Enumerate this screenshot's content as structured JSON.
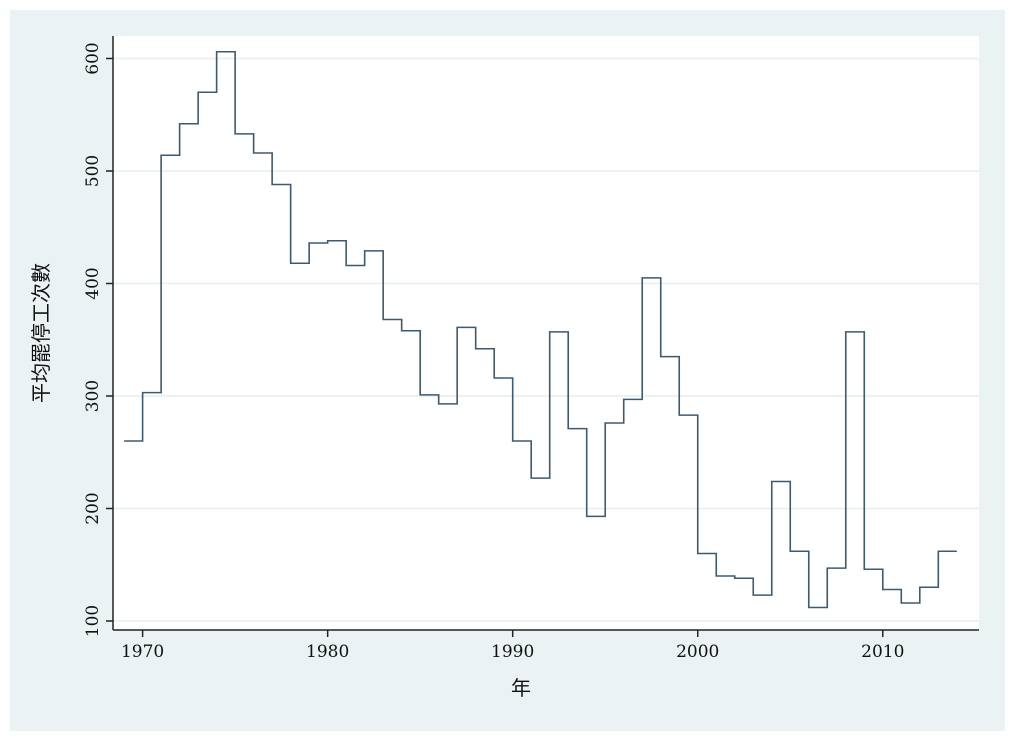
{
  "chart_data": {
    "type": "line",
    "step": true,
    "title": "",
    "xlabel": "年",
    "ylabel": "平均罷停工次數",
    "xlim": [
      1968.4,
      2015.2
    ],
    "ylim": [
      92,
      620
    ],
    "xticks": [
      1970,
      1980,
      1990,
      2000,
      2010
    ],
    "yticks": [
      100,
      200,
      300,
      400,
      500,
      600
    ],
    "grid": "horizontal",
    "legend": "none",
    "colors": {
      "line": "#3d5a73",
      "background": "#eaf2f3",
      "plot": "#ffffff",
      "grid": "#eaf2f3",
      "axis": "#222222"
    },
    "series": [
      {
        "x": [
          1969,
          1970,
          1971,
          1972,
          1973,
          1974,
          1975,
          1976,
          1977,
          1978,
          1979,
          1980,
          1981,
          1982,
          1983,
          1984,
          1985,
          1986,
          1987,
          1988,
          1989,
          1990,
          1991,
          1992,
          1993,
          1994,
          1995,
          1996,
          1997,
          1998,
          1999,
          2000,
          2001,
          2002,
          2003,
          2004,
          2005,
          2006,
          2007,
          2008,
          2009,
          2010,
          2011,
          2012,
          2013,
          2014
        ],
        "y": [
          260,
          303,
          514,
          542,
          570,
          606,
          533,
          516,
          488,
          418,
          436,
          438,
          416,
          429,
          368,
          358,
          301,
          293,
          361,
          342,
          316,
          260,
          227,
          357,
          271,
          193,
          276,
          297,
          405,
          335,
          283,
          160,
          140,
          138,
          123,
          224,
          162,
          112,
          147,
          357,
          146,
          128,
          116,
          130,
          162,
          162
        ]
      }
    ]
  }
}
